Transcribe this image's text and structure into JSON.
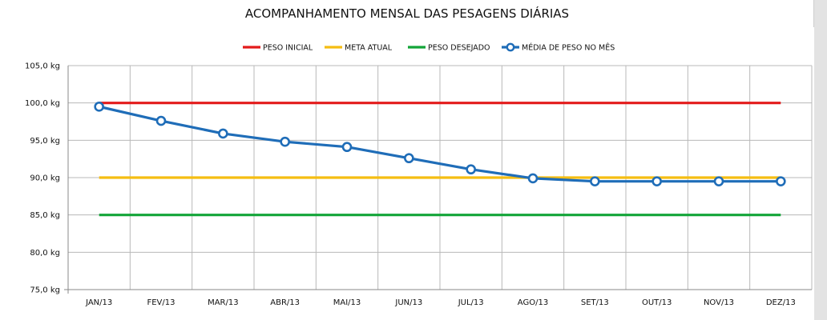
{
  "chart_data": {
    "type": "line",
    "title": "ACOMPANHAMENTO MENSAL DAS PESAGENS DIÁRIAS",
    "categories": [
      "JAN/13",
      "FEV/13",
      "MAR/13",
      "ABR/13",
      "MAI/13",
      "JUN/13",
      "JUL/13",
      "AGO/13",
      "SET/13",
      "OUT/13",
      "NOV/13",
      "DEZ/13"
    ],
    "ylim": [
      75,
      105
    ],
    "yticks": [
      75,
      80,
      85,
      90,
      95,
      100,
      105
    ],
    "ytick_labels": [
      "75,0 kg",
      "80,0 kg",
      "85,0 kg",
      "90,0 kg",
      "95,0 kg",
      "100,0 kg",
      "105,0 kg"
    ],
    "grid": true,
    "legend_position": "top",
    "series": [
      {
        "name": "PESO INICIAL",
        "color": "#e31b1b",
        "markers": false,
        "values": [
          100,
          100,
          100,
          100,
          100,
          100,
          100,
          100,
          100,
          100,
          100,
          100
        ]
      },
      {
        "name": "META ATUAL",
        "color": "#f5bd12",
        "markers": false,
        "values": [
          90,
          90,
          90,
          90,
          90,
          90,
          90,
          90,
          90,
          90,
          90,
          90
        ]
      },
      {
        "name": "PESO DESEJADO",
        "color": "#13a538",
        "markers": false,
        "values": [
          85,
          85,
          85,
          85,
          85,
          85,
          85,
          85,
          85,
          85,
          85,
          85
        ]
      },
      {
        "name": "MÉDIA DE PESO NO MÊS",
        "color": "#1f6db8",
        "markers": true,
        "values": [
          99.5,
          97.6,
          95.9,
          94.8,
          94.1,
          92.6,
          91.1,
          89.9,
          89.5,
          89.5,
          89.5,
          89.5
        ]
      }
    ]
  }
}
